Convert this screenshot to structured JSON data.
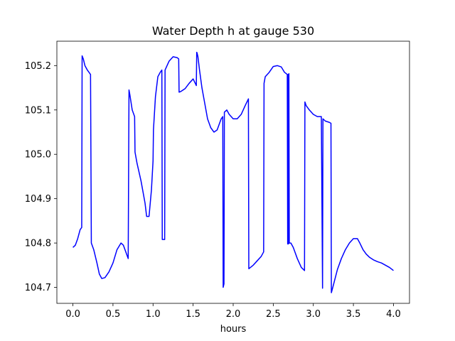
{
  "chart_data": {
    "type": "line",
    "title": "Water Depth h at gauge 530",
    "xlabel": "hours",
    "ylabel": "",
    "xlim": [
      -0.2,
      4.2
    ],
    "ylim": [
      104.664,
      105.255
    ],
    "xticks": [
      0.0,
      0.5,
      1.0,
      1.5,
      2.0,
      2.5,
      3.0,
      3.5,
      4.0
    ],
    "xtick_labels": [
      "0.0",
      "0.5",
      "1.0",
      "1.5",
      "2.0",
      "2.5",
      "3.0",
      "3.5",
      "4.0"
    ],
    "yticks": [
      104.7,
      104.8,
      104.9,
      105.0,
      105.1,
      105.2
    ],
    "ytick_labels": [
      "104.7",
      "104.8",
      "104.9",
      "105.0",
      "105.1",
      "105.2"
    ],
    "grid": false,
    "series": [
      {
        "name": "",
        "color": "#0000ff",
        "x": [
          0.0,
          0.03,
          0.06,
          0.09,
          0.11,
          0.115,
          0.13,
          0.15,
          0.18,
          0.22,
          0.23,
          0.26,
          0.3,
          0.33,
          0.36,
          0.4,
          0.45,
          0.5,
          0.55,
          0.6,
          0.63,
          0.66,
          0.69,
          0.7,
          0.71,
          0.74,
          0.77,
          0.775,
          0.8,
          0.85,
          0.9,
          0.92,
          0.95,
          0.98,
          1.0,
          1.005,
          1.03,
          1.06,
          1.09,
          1.11,
          1.115,
          1.145,
          1.15,
          1.2,
          1.25,
          1.3,
          1.32,
          1.325,
          1.35,
          1.4,
          1.45,
          1.5,
          1.54,
          1.545,
          1.55,
          1.56,
          1.58,
          1.61,
          1.64,
          1.68,
          1.72,
          1.76,
          1.8,
          1.85,
          1.87,
          1.875,
          1.885,
          1.89,
          1.92,
          1.95,
          2.0,
          2.05,
          2.1,
          2.15,
          2.19,
          2.195,
          2.25,
          2.3,
          2.35,
          2.38,
          2.385,
          2.4,
          2.45,
          2.5,
          2.55,
          2.6,
          2.64,
          2.675,
          2.68,
          2.685,
          2.69,
          2.695,
          2.7,
          2.72,
          2.75,
          2.8,
          2.85,
          2.89,
          2.895,
          2.91,
          2.95,
          3.0,
          3.05,
          3.1,
          3.115,
          3.12,
          3.15,
          3.2,
          3.22,
          3.225,
          3.25,
          3.3,
          3.35,
          3.4,
          3.45,
          3.5,
          3.55,
          3.58,
          3.62,
          3.66,
          3.7,
          3.75,
          3.8,
          3.85,
          3.9,
          3.95,
          4.0
        ],
        "y": [
          104.79,
          104.795,
          104.81,
          104.83,
          104.835,
          105.222,
          105.215,
          105.2,
          105.19,
          105.18,
          104.8,
          104.785,
          104.755,
          104.73,
          104.72,
          104.722,
          104.735,
          104.755,
          104.785,
          104.8,
          104.795,
          104.78,
          104.765,
          105.145,
          105.135,
          105.1,
          105.085,
          105.005,
          104.98,
          104.94,
          104.89,
          104.86,
          104.86,
          104.92,
          104.985,
          105.055,
          105.13,
          105.175,
          105.185,
          105.19,
          104.808,
          104.808,
          105.19,
          105.21,
          105.22,
          105.218,
          105.215,
          105.14,
          105.142,
          105.148,
          105.16,
          105.17,
          105.155,
          105.23,
          105.228,
          105.22,
          105.19,
          105.15,
          105.12,
          105.08,
          105.06,
          105.05,
          105.055,
          105.08,
          105.085,
          104.7,
          104.708,
          105.095,
          105.1,
          105.09,
          105.08,
          105.08,
          105.09,
          105.11,
          105.125,
          104.742,
          104.75,
          104.76,
          104.77,
          104.78,
          105.16,
          105.175,
          105.185,
          105.198,
          105.2,
          105.197,
          105.185,
          105.18,
          104.798,
          105.18,
          104.798,
          105.182,
          104.8,
          104.8,
          104.79,
          104.765,
          104.745,
          104.738,
          105.118,
          105.11,
          105.1,
          105.09,
          105.085,
          105.085,
          104.698,
          105.08,
          105.075,
          105.072,
          105.07,
          104.688,
          104.705,
          104.74,
          104.765,
          104.785,
          104.8,
          104.81,
          104.81,
          104.8,
          104.785,
          104.775,
          104.768,
          104.762,
          104.758,
          104.755,
          104.75,
          104.745,
          104.738
        ]
      }
    ]
  }
}
